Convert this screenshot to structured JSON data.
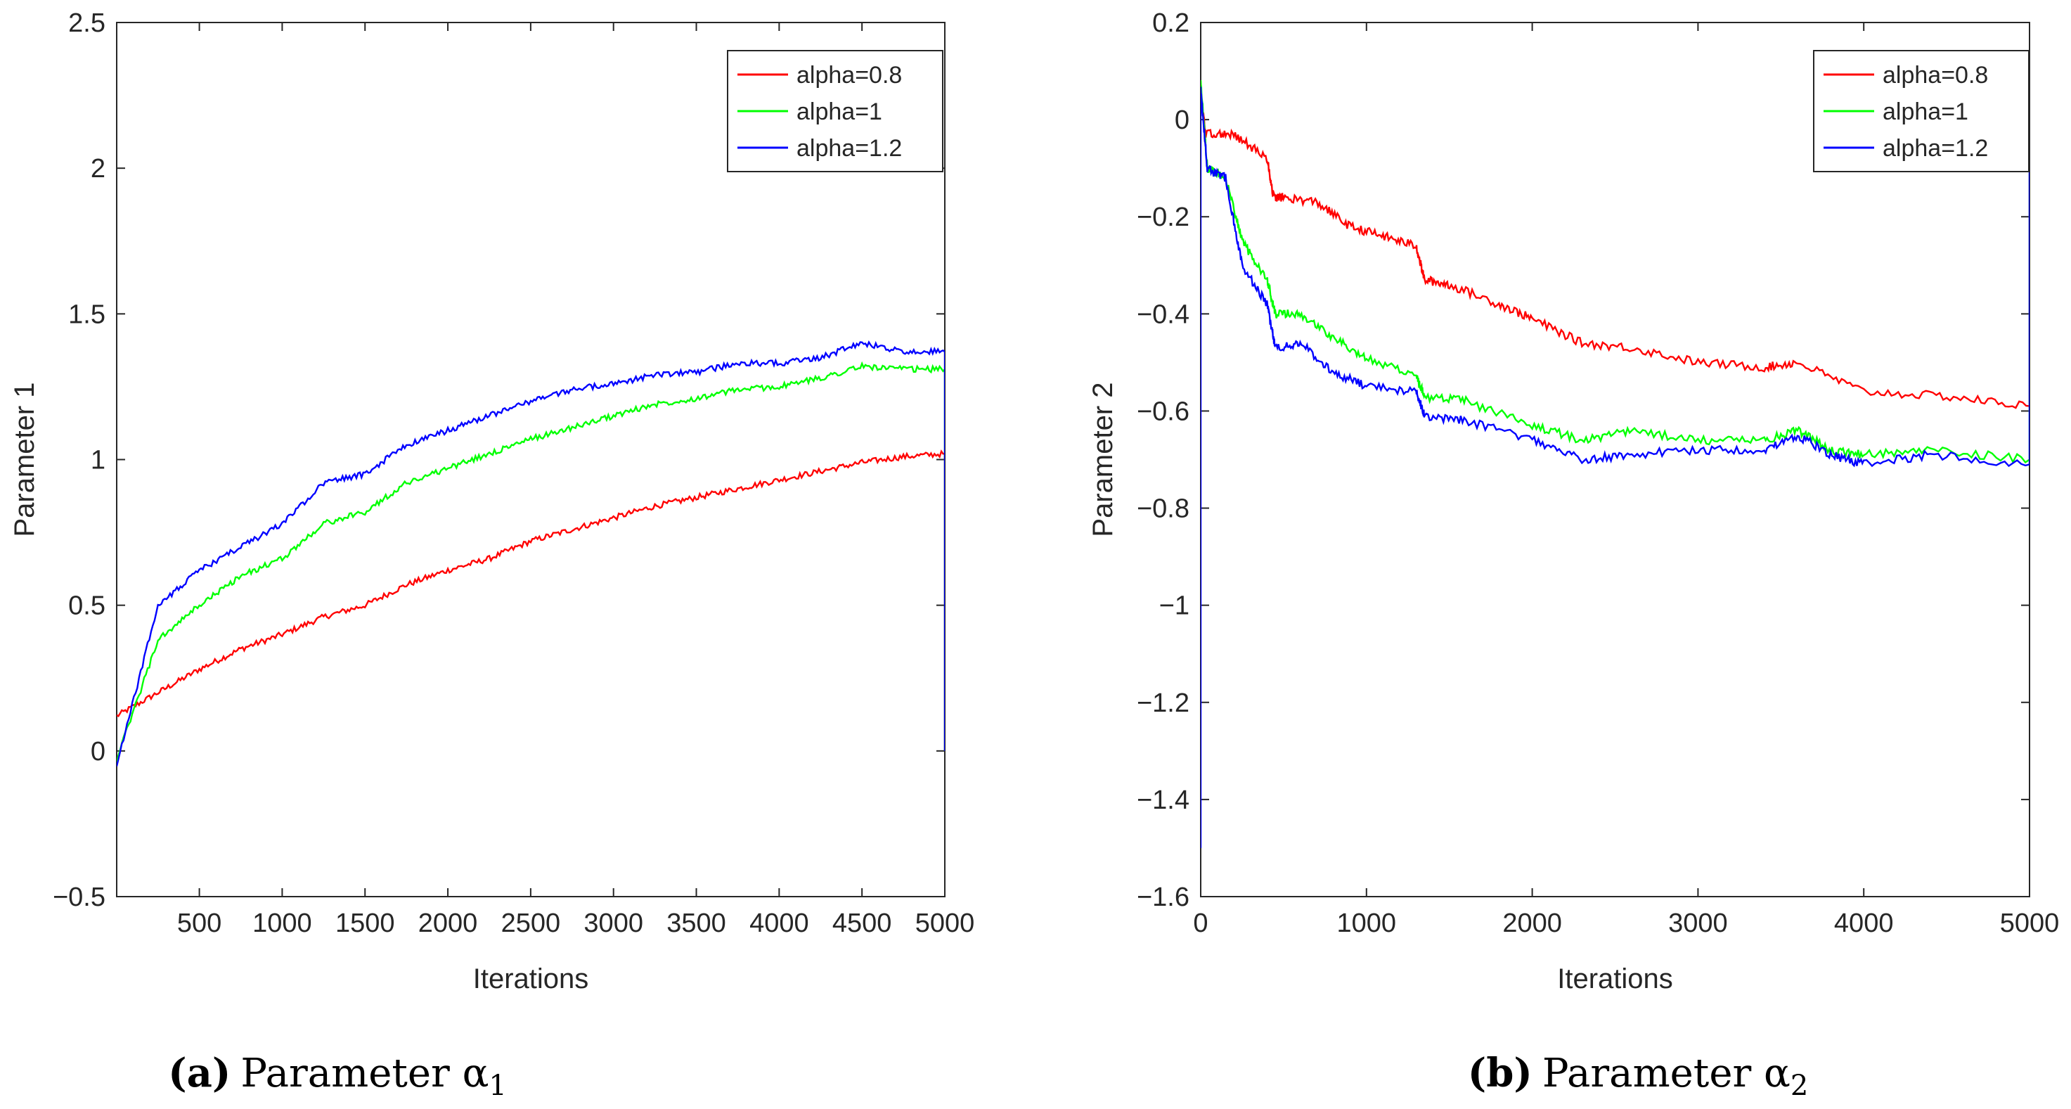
{
  "chart_data": [
    {
      "type": "line",
      "ylabel": "Parameter 1",
      "xlabel": "Iterations",
      "xlim": [
        1,
        5000
      ],
      "ylim": [
        -0.5,
        2.5
      ],
      "xticks": [
        500,
        1000,
        1500,
        2000,
        2500,
        3000,
        3500,
        4000,
        4500,
        5000
      ],
      "yticks": [
        -0.5,
        0,
        0.5,
        1,
        1.5,
        2,
        2.5
      ],
      "xtick_labels": [
        "500",
        "1000",
        "1500",
        "2000",
        "2500",
        "3000",
        "3500",
        "4000",
        "4500",
        "5000"
      ],
      "ytick_labels": [
        "−0.5",
        "0",
        "0.5",
        "1",
        "1.5",
        "2",
        "2.5"
      ],
      "legend_position": "top-right",
      "final_drop_to": 0,
      "series": [
        {
          "name": "alpha=0.8",
          "color": "#ff0000",
          "x": [
            1,
            250,
            500,
            750,
            1000,
            1250,
            1500,
            1750,
            2000,
            2250,
            2500,
            2750,
            3000,
            3250,
            3500,
            3750,
            4000,
            4250,
            4500,
            4750,
            5000
          ],
          "y": [
            0.12,
            0.2,
            0.28,
            0.35,
            0.4,
            0.46,
            0.5,
            0.57,
            0.62,
            0.66,
            0.72,
            0.76,
            0.8,
            0.84,
            0.87,
            0.9,
            0.93,
            0.96,
            0.99,
            1.01,
            1.02
          ]
        },
        {
          "name": "alpha=1",
          "color": "#00ff00",
          "x": [
            1,
            250,
            500,
            750,
            1000,
            1250,
            1500,
            1750,
            2000,
            2250,
            2500,
            2750,
            3000,
            3250,
            3500,
            3750,
            4000,
            4250,
            4500,
            4750,
            5000
          ],
          "y": [
            -0.03,
            0.38,
            0.5,
            0.6,
            0.66,
            0.78,
            0.82,
            0.92,
            0.97,
            1.02,
            1.07,
            1.11,
            1.15,
            1.19,
            1.21,
            1.24,
            1.25,
            1.28,
            1.32,
            1.31,
            1.31
          ]
        },
        {
          "name": "alpha=1.2",
          "color": "#0000ff",
          "x": [
            1,
            250,
            500,
            750,
            1000,
            1250,
            1500,
            1750,
            2000,
            2250,
            2500,
            2750,
            3000,
            3250,
            3500,
            3750,
            4000,
            4250,
            4500,
            4750,
            5000
          ],
          "y": [
            -0.05,
            0.5,
            0.62,
            0.7,
            0.78,
            0.92,
            0.95,
            1.05,
            1.1,
            1.15,
            1.2,
            1.24,
            1.26,
            1.29,
            1.3,
            1.33,
            1.33,
            1.35,
            1.4,
            1.37,
            1.37
          ]
        }
      ]
    },
    {
      "type": "line",
      "ylabel": "Parameter 2",
      "xlabel": "Iterations",
      "xlim": [
        0,
        5000
      ],
      "ylim": [
        -1.6,
        0.2
      ],
      "xticks": [
        0,
        1000,
        2000,
        3000,
        4000,
        5000
      ],
      "yticks": [
        -1.6,
        -1.4,
        -1.2,
        -1,
        -0.8,
        -0.6,
        -0.4,
        -0.2,
        0,
        0.2
      ],
      "xtick_labels": [
        "0",
        "1000",
        "2000",
        "3000",
        "4000",
        "5000"
      ],
      "ytick_labels": [
        "−1.6",
        "−1.4",
        "−1.2",
        "−1",
        "−0.8",
        "−0.6",
        "−0.4",
        "−0.2",
        "0",
        "0.2"
      ],
      "legend_position": "top-right",
      "final_rise_to": 0,
      "series": [
        {
          "name": "alpha=0.8",
          "color": "#ff0000",
          "x": [
            0,
            30,
            200,
            400,
            440,
            500,
            700,
            900,
            1100,
            1300,
            1350,
            1500,
            1800,
            2000,
            2300,
            2600,
            3000,
            3400,
            3600,
            4000,
            4500,
            5000
          ],
          "y": [
            0.05,
            -0.03,
            -0.03,
            -0.08,
            -0.16,
            -0.16,
            -0.17,
            -0.22,
            -0.24,
            -0.26,
            -0.33,
            -0.34,
            -0.38,
            -0.41,
            -0.46,
            -0.47,
            -0.5,
            -0.51,
            -0.5,
            -0.56,
            -0.57,
            -0.59
          ]
        },
        {
          "name": "alpha=1",
          "color": "#00ff00",
          "x": [
            0,
            40,
            150,
            250,
            400,
            450,
            600,
            800,
            1000,
            1300,
            1350,
            1600,
            2000,
            2300,
            2600,
            3000,
            3400,
            3600,
            3800,
            4000,
            4400,
            5000
          ],
          "y": [
            0.08,
            -0.1,
            -0.12,
            -0.25,
            -0.33,
            -0.4,
            -0.4,
            -0.45,
            -0.49,
            -0.53,
            -0.57,
            -0.58,
            -0.63,
            -0.66,
            -0.64,
            -0.66,
            -0.66,
            -0.64,
            -0.68,
            -0.69,
            -0.68,
            -0.7
          ]
        },
        {
          "name": "alpha=1.2",
          "color": "#0000ff",
          "x": [
            0,
            40,
            150,
            250,
            400,
            450,
            600,
            800,
            1000,
            1300,
            1350,
            1600,
            2000,
            2300,
            2600,
            3000,
            3400,
            3600,
            3800,
            4000,
            4400,
            5000
          ],
          "y": [
            0.06,
            -0.1,
            -0.12,
            -0.3,
            -0.38,
            -0.47,
            -0.46,
            -0.52,
            -0.55,
            -0.56,
            -0.61,
            -0.62,
            -0.66,
            -0.7,
            -0.69,
            -0.68,
            -0.68,
            -0.65,
            -0.69,
            -0.71,
            -0.69,
            -0.71
          ]
        }
      ]
    }
  ],
  "captions": [
    {
      "label": "(a)",
      "text": "Parameter α",
      "subscript": "1"
    },
    {
      "label": "(b)",
      "text": "Parameter α",
      "subscript": "2"
    }
  ]
}
